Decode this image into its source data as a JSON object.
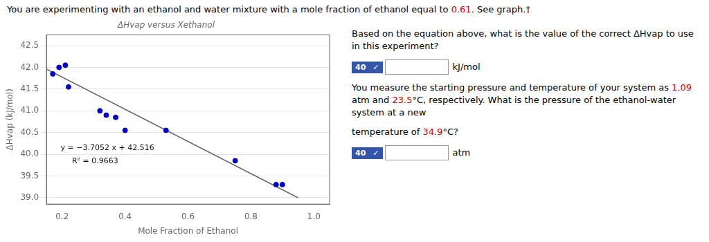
{
  "chart_data": {
    "type": "scatter",
    "title": "ΔHvap versus Xethanol",
    "x_label": "Mole Fraction of Ethanol",
    "y_label": "ΔHvap (kJ/mol)",
    "series": [
      {
        "type": "scatter",
        "color": "#0000cc",
        "x": [
          0.17,
          0.19,
          0.21,
          0.22,
          0.32,
          0.34,
          0.37,
          0.4,
          0.53,
          0.75,
          0.88,
          0.9
        ],
        "values": [
          41.85,
          42.0,
          42.05,
          41.55,
          41.0,
          40.9,
          40.85,
          40.55,
          40.55,
          39.85,
          39.3,
          39.3
        ]
      },
      {
        "type": "line",
        "color": "#666666",
        "x": [
          0.15,
          0.95
        ],
        "values": [
          41.96022,
          38.99606
        ]
      }
    ],
    "xlim": [
      0.15,
      1.05
    ],
    "xticks": [
      0.2,
      0.4,
      0.6,
      0.8,
      {
        "value": 1,
        "label": "1.0"
      }
    ],
    "ylim": [
      38.85,
      42.75
    ],
    "yticks": [
      {
        "value": 39,
        "label": "39.0"
      },
      39.5,
      {
        "value": 40,
        "label": "40.0"
      },
      40.5,
      {
        "value": 41,
        "label": "41.0"
      },
      41.5,
      {
        "value": 42,
        "label": "42.0"
      },
      42.5
    ],
    "grid": "y",
    "annotations": [
      {
        "text": "y = −3.7052 x + 42.516",
        "color": "#111111"
      },
      {
        "text": "R² = 0.9663",
        "color": "#111111"
      },
      {
        "segments": [
          {
            "text": "You are experimenting with an ethanol and water mixture with a mole fraction of ethanol equal to ",
            "color": "#000000"
          },
          {
            "text": "0.61",
            "color": "#cc0000"
          },
          {
            "text": ". See graph.†",
            "color": "#000000"
          }
        ]
      },
      {
        "segments": [
          {
            "text": "Based on the equation above, what is the value of the correct ΔHvap to use in this experiment?",
            "color": "#000000"
          }
        ]
      },
      {
        "segments": [
          {
            "text": "40",
            "color": "#ffffff",
            "background": "#3355aa"
          },
          {
            "text": "✓",
            "color": "#ffffff",
            "background": "#3355aa"
          },
          {
            "text": "kJ/mol",
            "color": "#000000"
          }
        ]
      },
      {
        "segments": [
          {
            "text": "You measure the starting pressure and temperature of your system as ",
            "color": "#000000"
          },
          {
            "text": "1.09",
            "color": "#cc0000"
          },
          {
            "text": " atm and ",
            "color": "#000000"
          },
          {
            "text": "23.5",
            "color": "#cc0000"
          },
          {
            "text": "°C, respectively. What is the pressure of the ethanol-water system at a new",
            "color": "#000000"
          }
        ]
      },
      {
        "segments": [
          {
            "text": "temperature of ",
            "color": "#000000"
          },
          {
            "text": "34.9",
            "color": "#cc0000"
          },
          {
            "text": "°C?",
            "color": "#000000"
          }
        ]
      },
      {
        "segments": [
          {
            "text": "40",
            "color": "#ffffff",
            "background": "#3355aa"
          },
          {
            "text": "✓",
            "color": "#ffffff",
            "background": "#3355aa"
          },
          {
            "text": "atm",
            "color": "#000000"
          }
        ]
      }
    ]
  }
}
